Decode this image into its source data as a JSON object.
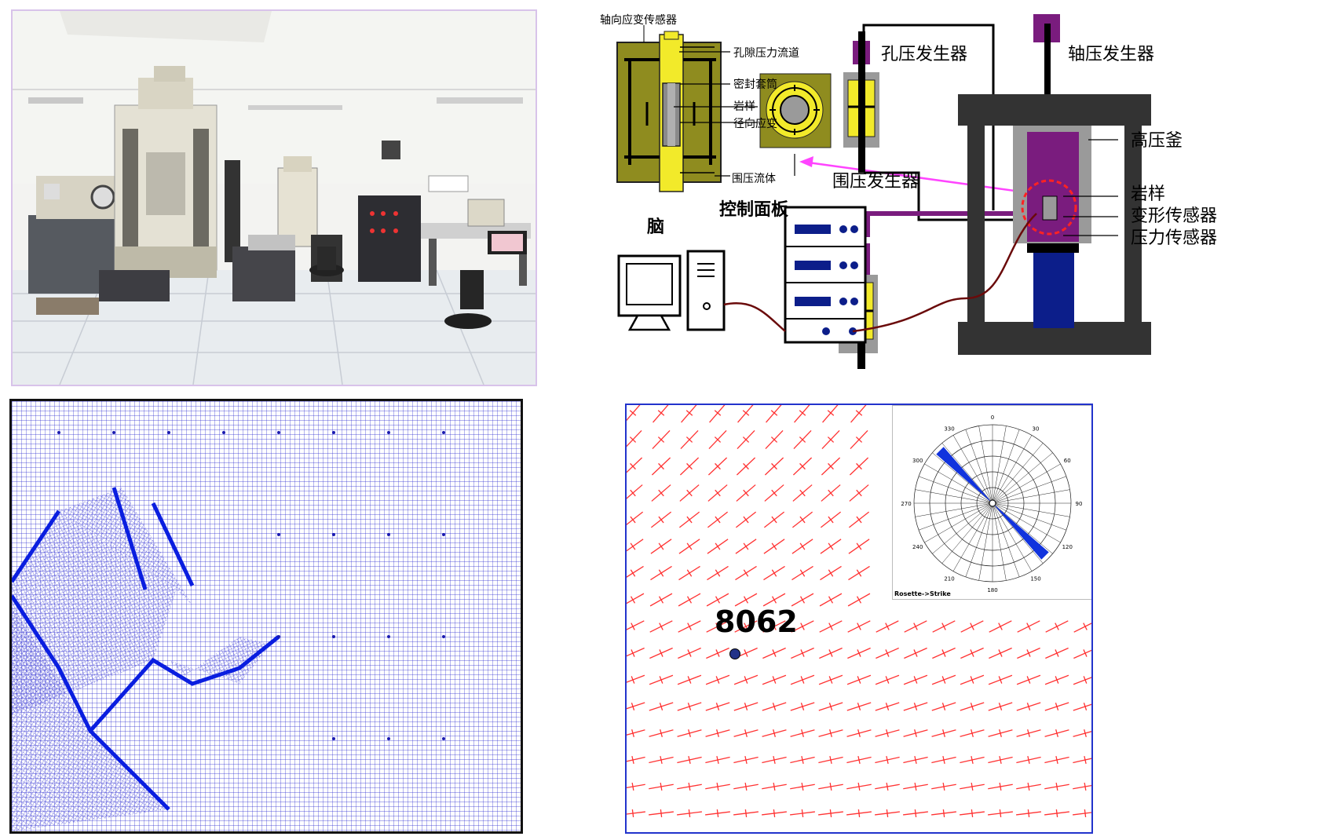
{
  "schematic": {
    "labels": {
      "axial_strain_sensor": "轴向应变传感器",
      "pore_pressure_channel": "孔隙压力流道",
      "seal_sleeve": "密封套筒",
      "rock_sample_inner": "岩样",
      "radial_strain": "径向应变",
      "confining_fluid": "围压流体",
      "pore_pressure_generator": "孔压发生器",
      "axial_pressure_generator": "轴压发生器",
      "confining_pressure_generator": "围压发生器",
      "high_pressure_vessel": "高压釜",
      "rock_sample": "岩样",
      "deformation_sensor": "变形传感器",
      "pressure_sensor": "压力传感器",
      "computer": "脑",
      "control_panel": "控制面板"
    },
    "colors": {
      "olive": "#8f8c1f",
      "yellow": "#f2ea2a",
      "purple": "#7a1c7e",
      "dark_frame": "#333333",
      "blue_piston": "#0c1e8a",
      "magenta_arrow": "#ff44ff",
      "red_circle": "#ff2222",
      "wire": "#6a0a0a"
    }
  },
  "stress_map": {
    "well_label": "8062",
    "rose_caption": "Rosette->Strike",
    "rose_angles": [
      "0",
      "30",
      "60",
      "90",
      "120",
      "150",
      "180",
      "210",
      "240",
      "270",
      "300",
      "330"
    ],
    "colors": {
      "ticks": "#ff3333",
      "rose_petal": "#1133dd",
      "well_marker": "#223388"
    }
  },
  "mesh": {
    "colors": {
      "grid": "#2222cc",
      "fault": "#0a1ee0"
    }
  }
}
